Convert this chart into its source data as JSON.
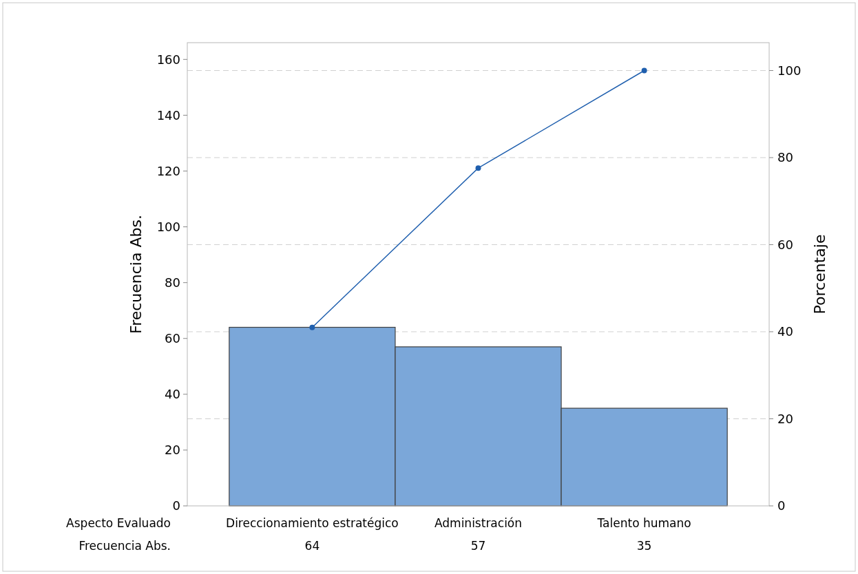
{
  "chart_data": {
    "type": "bar",
    "xlabel": "Aspecto Evaluado",
    "ylabel": "Frecuencia Abs.",
    "y2label": "Porcentaje",
    "categories": [
      "Direccionamiento estratégico",
      "Administración",
      "Talento humano"
    ],
    "series": [
      {
        "color": "#7ba7d9",
        "values": [
          64,
          57,
          35
        ],
        "value_labels": [
          "64",
          "57",
          "35"
        ]
      },
      {
        "type": "line",
        "axis": "y2",
        "color": "#1f5fae",
        "values": [
          41,
          77.6,
          100
        ]
      }
    ],
    "ylim": [
      0,
      166
    ],
    "yticks": [
      0,
      20,
      40,
      60,
      80,
      100,
      120,
      140,
      160
    ],
    "y2lim": [
      0,
      106.4
    ],
    "y2ticks": [
      0,
      20,
      40,
      60,
      80,
      100
    ],
    "grid": true,
    "marker": "circle",
    "annotations": [
      "Frecuencia Abs."
    ]
  }
}
